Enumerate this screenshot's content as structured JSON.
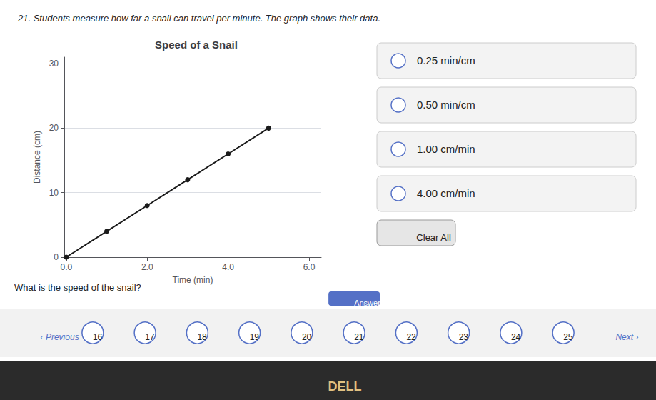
{
  "chart_data": {
    "type": "line",
    "title": "Speed of a Snail",
    "subtitle": "21. Students measure how far a snail can travel per minute. The graph shows their data.",
    "xlabel": "Time (min)",
    "ylabel": "Distance (cm)",
    "x": [
      0,
      1,
      2,
      3,
      4,
      5
    ],
    "values": [
      0,
      4,
      8,
      12,
      16,
      20
    ],
    "color": "#1a1a1a",
    "marker": "circle",
    "xlim": [
      -0.05,
      6.3
    ],
    "ylim": [
      0,
      31
    ],
    "xticks": [
      {
        "value": 0.0,
        "label": "0.0"
      },
      {
        "value": 2.0,
        "label": "2.0"
      },
      {
        "value": 4.0,
        "label": "4.0"
      },
      {
        "value": 6.0,
        "label": "6.0"
      }
    ],
    "yticks": [
      0,
      10,
      20,
      30
    ],
    "grid": "y",
    "annotations": [
      "What is the speed of the snail?",
      "0.25 min/cm",
      "0.50 min/cm",
      "1.00 cm/min",
      "4.00 cm/min",
      "Clear All",
      "Answered",
      "‹ Previous",
      "16",
      "17",
      "18",
      "19",
      "20",
      "21",
      "22",
      "23",
      "24",
      "25",
      "Next ›",
      "DELL"
    ]
  }
}
